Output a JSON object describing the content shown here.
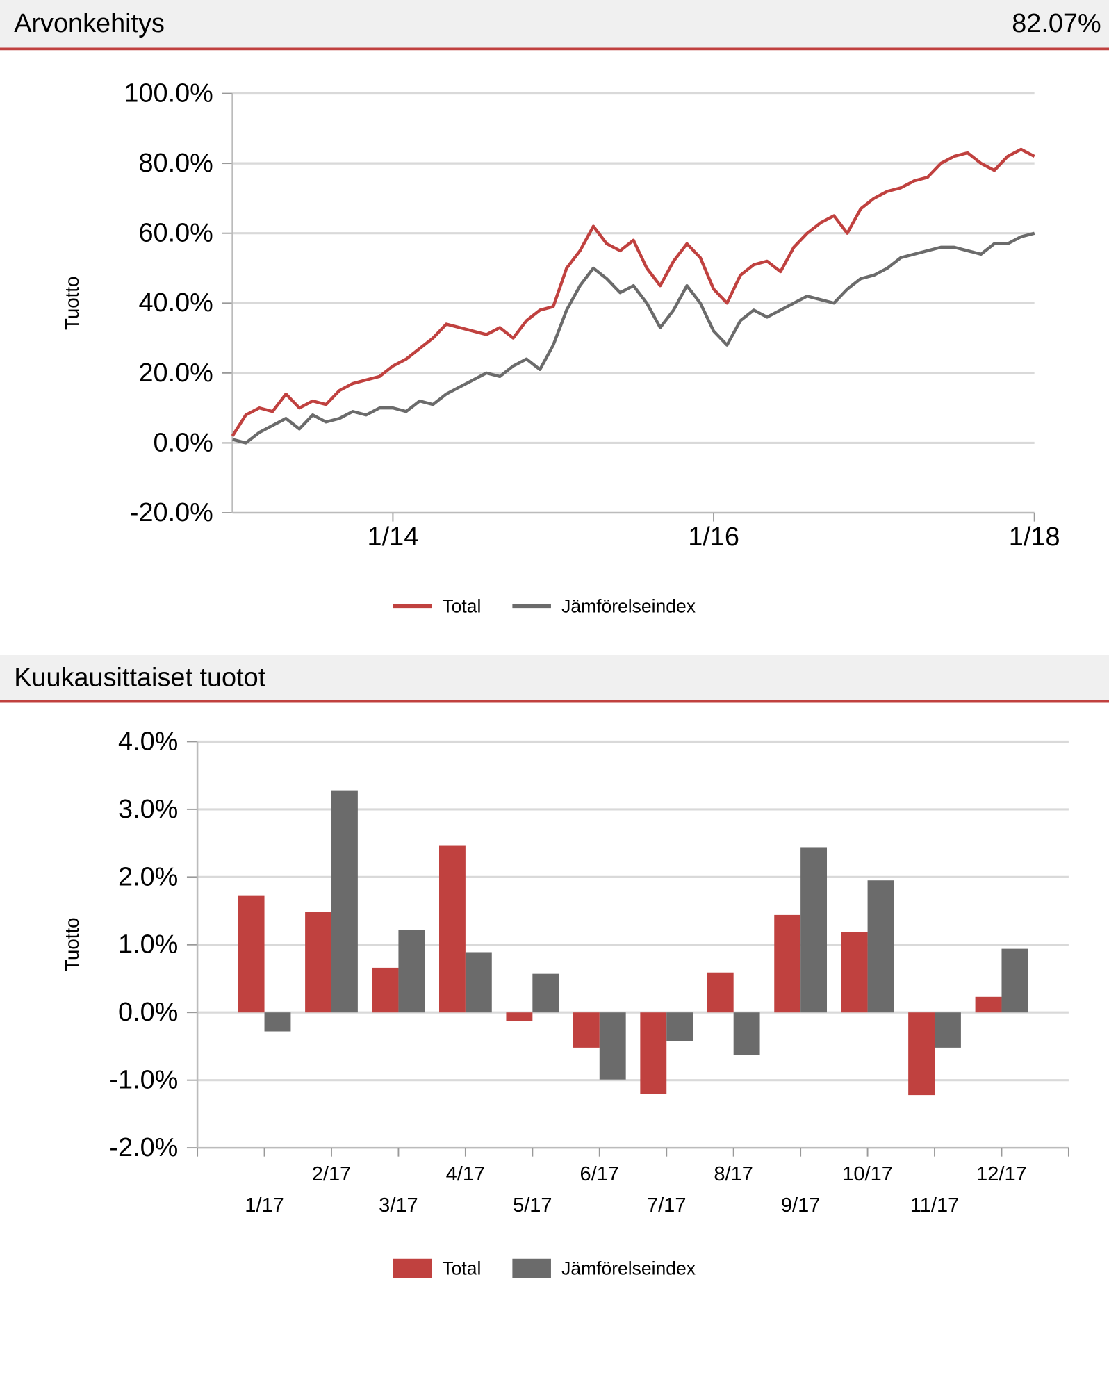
{
  "header": {
    "title": "Arvonkehitys",
    "value": "82.07%"
  },
  "header2": {
    "title": "Kuukausittaiset tuotot"
  },
  "chart_data": [
    {
      "type": "line",
      "y_label": "Tuotto",
      "x": [
        "1/13",
        "2/13",
        "3/13",
        "4/13",
        "5/13",
        "6/13",
        "7/13",
        "8/13",
        "9/13",
        "10/13",
        "11/13",
        "12/13",
        "1/14",
        "2/14",
        "3/14",
        "4/14",
        "5/14",
        "6/14",
        "7/14",
        "8/14",
        "9/14",
        "10/14",
        "11/14",
        "12/14",
        "1/15",
        "2/15",
        "3/15",
        "4/15",
        "5/15",
        "6/15",
        "7/15",
        "8/15",
        "9/15",
        "10/15",
        "11/15",
        "12/15",
        "1/16",
        "2/16",
        "3/16",
        "4/16",
        "5/16",
        "6/16",
        "7/16",
        "8/16",
        "9/16",
        "10/16",
        "11/16",
        "12/16",
        "1/17",
        "2/17",
        "3/17",
        "4/17",
        "5/17",
        "6/17",
        "7/17",
        "8/17",
        "9/17",
        "10/17",
        "11/17",
        "12/17",
        "1/18"
      ],
      "xticks": [
        "1/14",
        "1/16",
        "1/18"
      ],
      "ylim": [
        -20,
        100
      ],
      "yticks": [
        {
          "value": -20,
          "label": "-20.0%"
        },
        {
          "value": 0,
          "label": "0.0%"
        },
        {
          "value": 20,
          "label": "20.0%"
        },
        {
          "value": 40,
          "label": "40.0%"
        },
        {
          "value": 60,
          "label": "60.0%"
        },
        {
          "value": 80,
          "label": "80.0%"
        },
        {
          "value": 100,
          "label": "100.0%"
        }
      ],
      "grid": true,
      "legend": "bottom",
      "series": [
        {
          "name": "Total",
          "color": "#c0413f",
          "values": [
            2,
            8,
            10,
            9,
            14,
            10,
            12,
            11,
            15,
            17,
            18,
            19,
            22,
            24,
            27,
            30,
            34,
            33,
            32,
            31,
            33,
            30,
            35,
            38,
            39,
            50,
            55,
            62,
            57,
            55,
            58,
            50,
            45,
            52,
            57,
            53,
            44,
            40,
            48,
            51,
            52,
            49,
            56,
            60,
            63,
            65,
            60,
            67,
            70,
            72,
            73,
            75,
            76,
            80,
            82,
            83,
            80,
            78,
            82,
            84,
            82
          ]
        },
        {
          "name": "Jämförelseindex",
          "color": "#6b6b6b",
          "values": [
            1,
            0,
            3,
            5,
            7,
            4,
            8,
            6,
            7,
            9,
            8,
            10,
            10,
            9,
            12,
            11,
            14,
            16,
            18,
            20,
            19,
            22,
            24,
            21,
            28,
            38,
            45,
            50,
            47,
            43,
            45,
            40,
            33,
            38,
            45,
            40,
            32,
            28,
            35,
            38,
            36,
            38,
            40,
            42,
            41,
            40,
            44,
            47,
            48,
            50,
            53,
            54,
            55,
            56,
            56,
            55,
            54,
            57,
            57,
            59,
            60
          ]
        }
      ]
    },
    {
      "type": "bar",
      "y_label": "Tuotto",
      "categories": [
        "1/17",
        "2/17",
        "3/17",
        "4/17",
        "5/17",
        "6/17",
        "7/17",
        "8/17",
        "9/17",
        "10/17",
        "11/17",
        "12/17"
      ],
      "ylim": [
        -2,
        4
      ],
      "yticks": [
        {
          "value": -2,
          "label": "-2.0%"
        },
        {
          "value": -1,
          "label": "-1.0%"
        },
        {
          "value": 0,
          "label": "0.0%"
        },
        {
          "value": 1,
          "label": "1.0%"
        },
        {
          "value": 2,
          "label": "2.0%"
        },
        {
          "value": 3,
          "label": "3.0%"
        },
        {
          "value": 4,
          "label": "4.0%"
        }
      ],
      "grid": true,
      "legend": "bottom",
      "series": [
        {
          "name": "Total",
          "color": "#c0413f",
          "values": [
            1.73,
            1.48,
            0.66,
            2.47,
            -0.13,
            -0.52,
            -1.2,
            0.59,
            1.44,
            1.19,
            -1.22,
            0.23
          ]
        },
        {
          "name": "Jämförelseindex",
          "color": "#6b6b6b",
          "values": [
            -0.28,
            3.28,
            1.22,
            0.89,
            0.57,
            -0.99,
            -0.42,
            -0.63,
            2.44,
            1.95,
            -0.52,
            0.94
          ]
        }
      ]
    }
  ]
}
